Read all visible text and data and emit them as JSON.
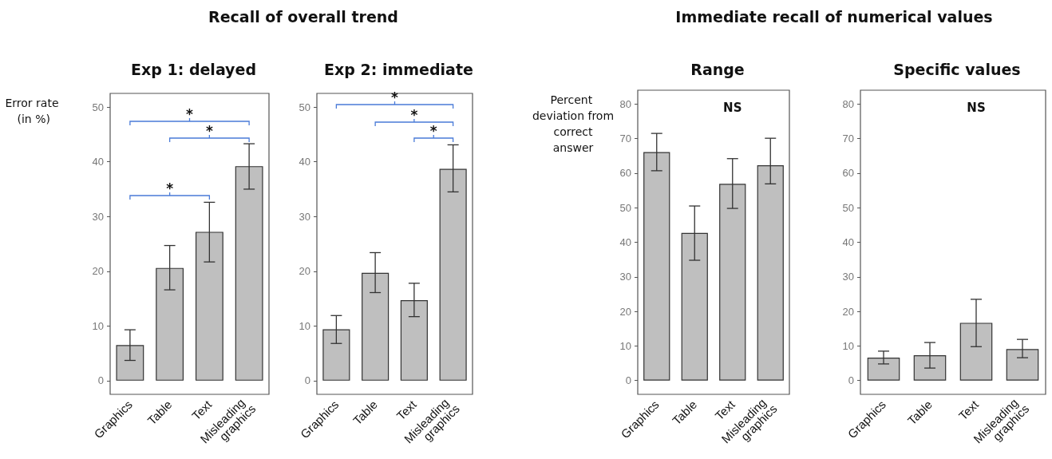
{
  "chart_data": [
    {
      "type": "bar",
      "title": "Exp 1: delayed",
      "ylabel": "Error rate (in %)",
      "categories": [
        "Graphics",
        "Table",
        "Text",
        "Misleading graphics"
      ],
      "values": [
        6.5,
        20.6,
        27.2,
        39.2
      ],
      "color": "#bfbfbf",
      "errors": [
        [
          3.7,
          9.3
        ],
        [
          16.6,
          24.7
        ],
        [
          21.7,
          32.6
        ],
        [
          35.0,
          43.3
        ]
      ],
      "ylim": [
        -2.5,
        52.5
      ],
      "yticks": [
        0,
        10,
        20,
        30,
        40,
        50
      ],
      "grid": false,
      "annotations": [
        "Recall of overall trend",
        "*",
        "*",
        "*"
      ]
    },
    {
      "type": "bar",
      "title": "Exp 2: immediate",
      "categories": [
        "Graphics",
        "Table",
        "Text",
        "Misleading graphics"
      ],
      "values": [
        9.4,
        19.7,
        14.7,
        38.7
      ],
      "color": "#bfbfbf",
      "errors": [
        [
          6.8,
          11.9
        ],
        [
          16.1,
          23.4
        ],
        [
          11.7,
          17.8
        ],
        [
          34.5,
          43.1
        ]
      ],
      "ylim": [
        -2.5,
        52.5
      ],
      "yticks": [
        0,
        10,
        20,
        30,
        40,
        50
      ],
      "grid": false,
      "annotations": [
        "*",
        "*",
        "*"
      ]
    },
    {
      "type": "bar",
      "title": "Range",
      "ylabel": "Percent deviation from correct answer",
      "categories": [
        "Graphics",
        "Table",
        "Text",
        "Misleading graphics"
      ],
      "values": [
        66.1,
        42.7,
        56.9,
        62.3
      ],
      "color": "#bfbfbf",
      "errors": [
        [
          60.7,
          71.5
        ],
        [
          34.8,
          50.5
        ],
        [
          49.8,
          64.2
        ],
        [
          56.9,
          70.1
        ]
      ],
      "ylim": [
        -4,
        84
      ],
      "yticks": [
        0,
        10,
        20,
        30,
        40,
        50,
        60,
        70,
        80
      ],
      "grid": false,
      "annotations": [
        "Immediate recall of numerical values",
        "NS"
      ]
    },
    {
      "type": "bar",
      "title": "Specific values",
      "categories": [
        "Graphics",
        "Table",
        "Text",
        "Misleading graphics"
      ],
      "values": [
        6.6,
        7.3,
        16.7,
        9.1
      ],
      "color": "#bfbfbf",
      "errors": [
        [
          4.8,
          8.5
        ],
        [
          3.6,
          11.0
        ],
        [
          9.8,
          23.5
        ],
        [
          6.6,
          11.9
        ]
      ],
      "ylim": [
        -4,
        84
      ],
      "yticks": [
        0,
        10,
        20,
        30,
        40,
        50,
        60,
        70,
        80
      ],
      "grid": false,
      "annotations": [
        "NS"
      ]
    }
  ]
}
